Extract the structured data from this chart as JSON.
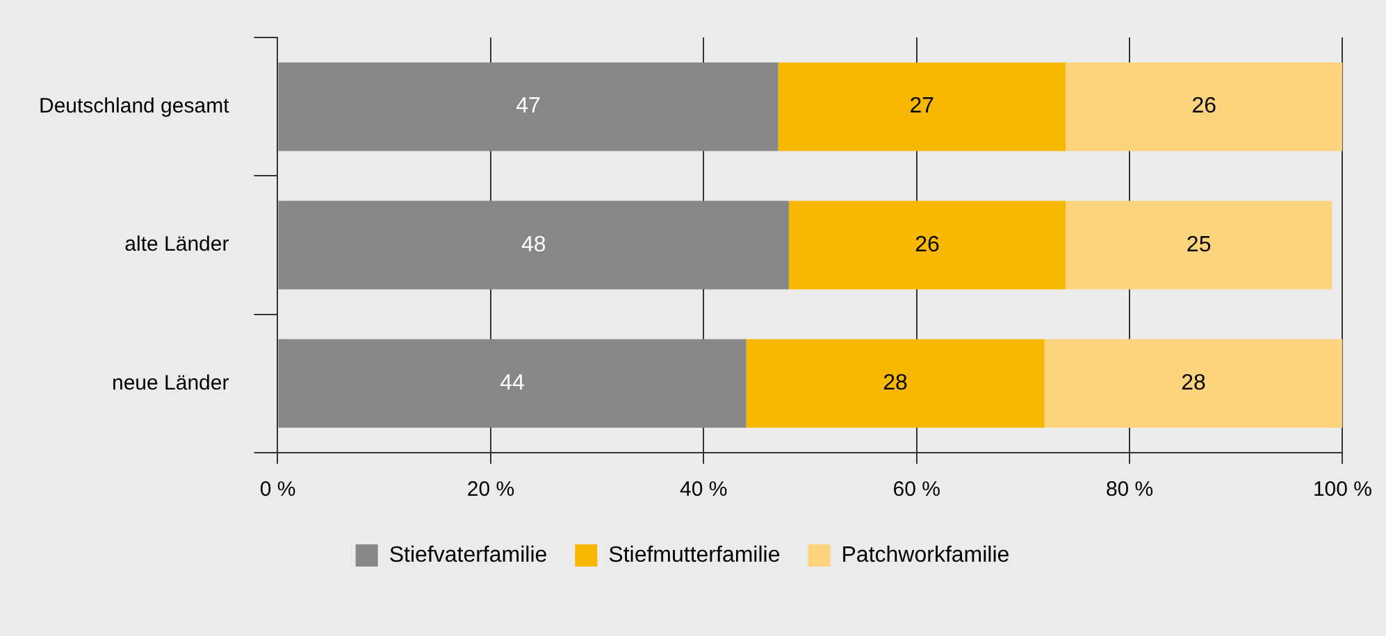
{
  "chart_data": {
    "type": "bar",
    "orientation": "horizontal",
    "stacked": true,
    "data_labels": true,
    "grid": "x",
    "legend": "bottom",
    "categories": [
      "Deutschland gesamt",
      "alte Länder",
      "neue Länder"
    ],
    "series": [
      {
        "name": "Stiefvaterfamilie",
        "color": "#878787",
        "values": [
          47,
          48,
          44
        ]
      },
      {
        "name": "Stiefmutterfamilie",
        "color": "#f9b800",
        "values": [
          27,
          26,
          28
        ]
      },
      {
        "name": "Patchworkfamilie",
        "color": "#fdd47e",
        "values": [
          26,
          25,
          28
        ]
      }
    ],
    "xlim": [
      0,
      100
    ],
    "xticks": [
      {
        "value": 0,
        "label": "0 %"
      },
      {
        "value": 20,
        "label": "20 %"
      },
      {
        "value": 40,
        "label": "40 %"
      },
      {
        "value": 60,
        "label": "60 %"
      },
      {
        "value": 80,
        "label": "80 %"
      },
      {
        "value": 100,
        "label": "100 %"
      }
    ]
  }
}
